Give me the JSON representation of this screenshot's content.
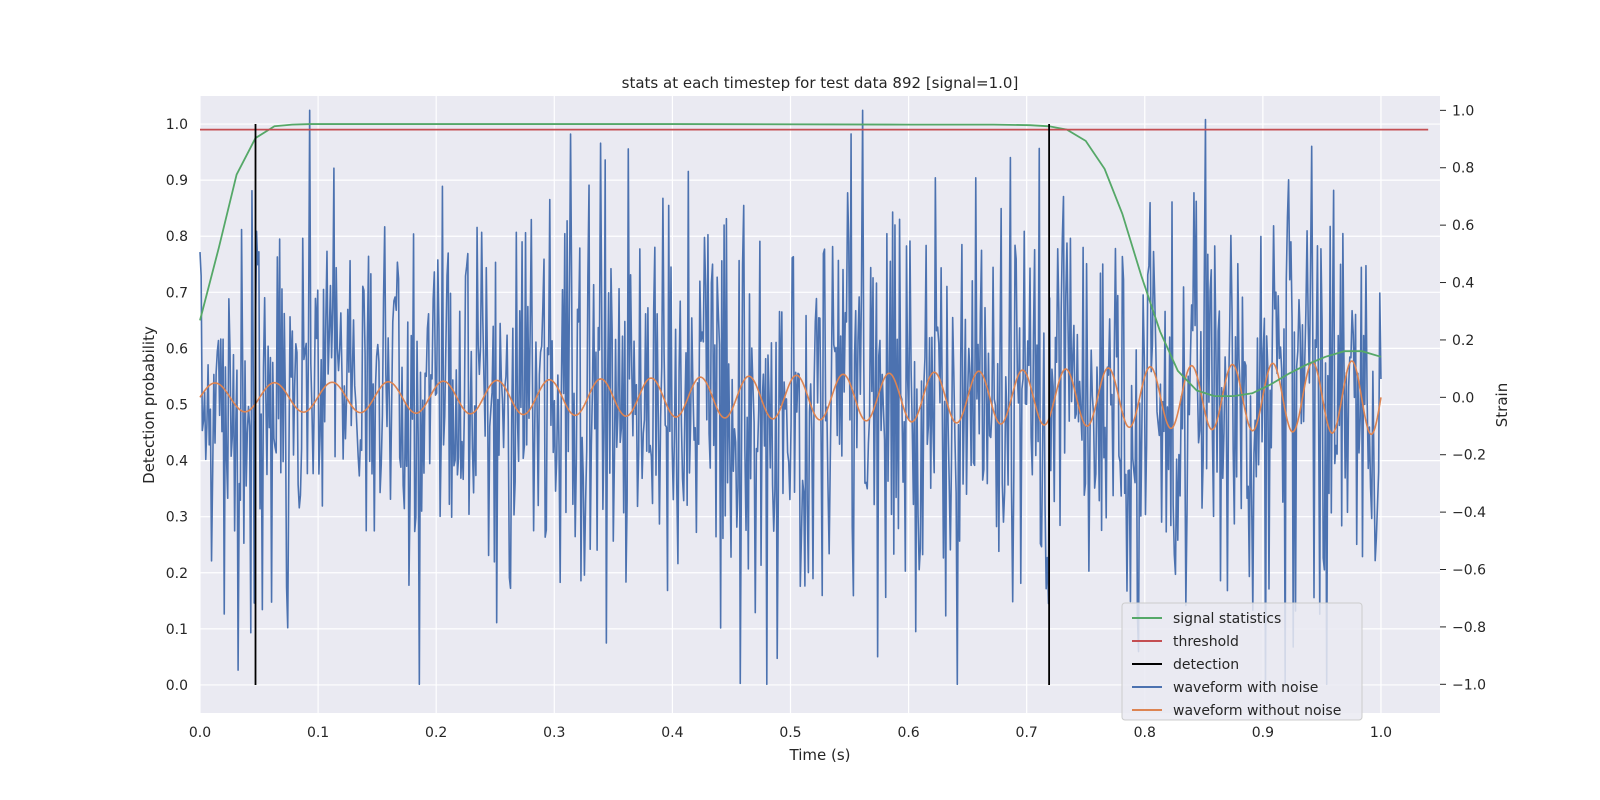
{
  "chart_data": {
    "type": "line",
    "title": "stats at each timestep for test data 892 [signal=1.0]",
    "xlabel": "Time (s)",
    "ylabel_left": "Detection probability",
    "ylabel_right": "Strain",
    "xlim": [
      0.0,
      1.05
    ],
    "ylim_left": [
      -0.05,
      1.05
    ],
    "ylim_right": [
      -1.1,
      1.05
    ],
    "x_ticks": [
      0.0,
      0.1,
      0.2,
      0.3,
      0.4,
      0.5,
      0.6,
      0.7,
      0.8,
      0.9,
      1.0
    ],
    "x_tick_labels": [
      "0.0",
      "0.1",
      "0.2",
      "0.3",
      "0.4",
      "0.5",
      "0.6",
      "0.7",
      "0.8",
      "0.9",
      "1.0"
    ],
    "y_left_ticks": [
      0.0,
      0.1,
      0.2,
      0.3,
      0.4,
      0.5,
      0.6,
      0.7,
      0.8,
      0.9,
      1.0
    ],
    "y_left_tick_labels": [
      "0.0",
      "0.1",
      "0.2",
      "0.3",
      "0.4",
      "0.5",
      "0.6",
      "0.7",
      "0.8",
      "0.9",
      "1.0"
    ],
    "y_right_ticks": [
      -1.0,
      -0.8,
      -0.6,
      -0.4,
      -0.2,
      0.0,
      0.2,
      0.4,
      0.6,
      0.8,
      1.0
    ],
    "y_right_tick_labels": [
      "−1.0",
      "−0.8",
      "−0.6",
      "−0.4",
      "−0.2",
      "0.0",
      "0.2",
      "0.4",
      "0.6",
      "0.8",
      "1.0"
    ],
    "grid": true,
    "legend_position": "lower-right",
    "colors": {
      "background": "#eaeaf2",
      "grid": "#ffffff",
      "signal_statistics": "#55a868",
      "threshold": "#c44e52",
      "detection": "#000000",
      "waveform_with_noise": "#4c72b0",
      "waveform_without_noise": "#dd8452"
    },
    "series": [
      {
        "name": "signal statistics",
        "axis": "left",
        "x": [
          0.0,
          0.016,
          0.031,
          0.047,
          0.063,
          0.078,
          0.094,
          0.2,
          0.4,
          0.6,
          0.672,
          0.703,
          0.719,
          0.734,
          0.75,
          0.766,
          0.781,
          0.797,
          0.813,
          0.828,
          0.844,
          0.859,
          0.875,
          0.891,
          0.906,
          0.922,
          0.938,
          0.953,
          0.969,
          0.984,
          1.0
        ],
        "values": [
          0.65,
          0.78,
          0.91,
          0.975,
          0.996,
          0.999,
          1.0,
          1.0,
          1.0,
          0.999,
          0.999,
          0.998,
          0.996,
          0.99,
          0.97,
          0.92,
          0.84,
          0.73,
          0.63,
          0.56,
          0.525,
          0.515,
          0.515,
          0.52,
          0.535,
          0.555,
          0.572,
          0.585,
          0.595,
          0.595,
          0.585
        ]
      },
      {
        "name": "threshold",
        "axis": "left",
        "x": [
          0.0,
          1.04
        ],
        "values": [
          0.99,
          0.99
        ]
      },
      {
        "name": "detection",
        "axis": "left",
        "type": "vlines",
        "x": [
          0.047,
          0.719
        ],
        "ymin": 0.0,
        "ymax": 1.0
      },
      {
        "name": "waveform with noise",
        "axis": "right",
        "generated": "noisy_waveform",
        "x_range": [
          0.0,
          1.0
        ],
        "samples": 1024,
        "amplitude_range": [
          -1.0,
          1.0
        ]
      },
      {
        "name": "waveform without noise",
        "axis": "right",
        "generated": "chirp",
        "x_range": [
          0.0,
          1.0
        ],
        "samples": 1024,
        "amplitude_start": 0.05,
        "amplitude_end": 0.13,
        "cycles": 25
      }
    ],
    "legend": [
      "signal statistics",
      "threshold",
      "detection",
      "waveform with noise",
      "waveform without noise"
    ]
  }
}
